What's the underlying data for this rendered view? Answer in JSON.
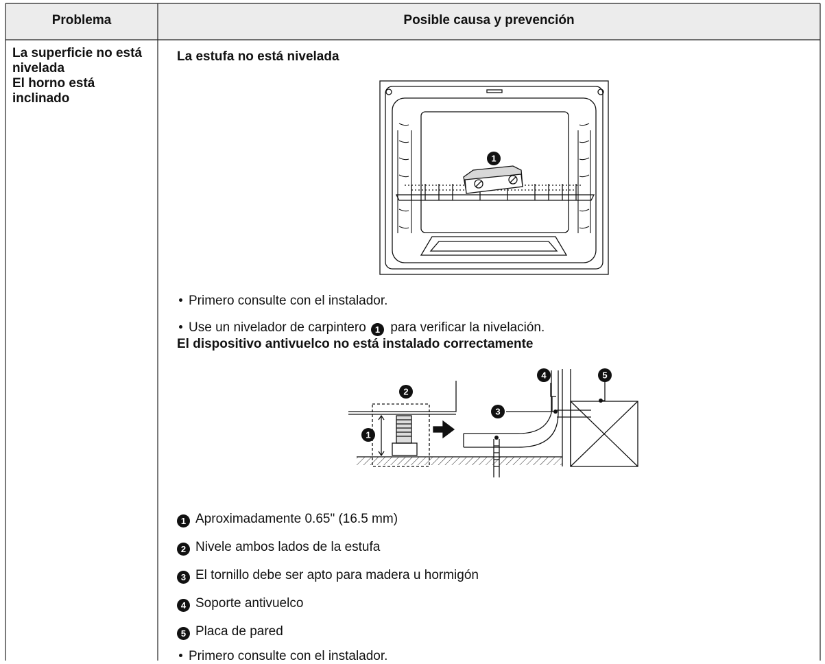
{
  "table": {
    "header": [
      "Problema",
      "Posible causa y prevención"
    ],
    "problem": [
      "La superficie no está nivelada",
      "El horno está inclinado"
    ],
    "cause_1": {
      "title": "La estufa no está nivelada",
      "figure_callouts": [
        "1"
      ],
      "bullets": [
        {
          "text": "Primero consulte con el instalador."
        },
        {
          "text_before": "Use un nivelador de carpintero",
          "marker": "1",
          "text_after": "para verificar la nivelación."
        }
      ]
    },
    "cause_2": {
      "title": "El dispositivo antivuelco no está instalado correctamente",
      "figure_callouts": [
        "1",
        "2",
        "3",
        "4",
        "5"
      ],
      "legend": [
        {
          "marker": "1",
          "text": "Aproximadamente 0.65\" (16.5 mm)"
        },
        {
          "marker": "2",
          "text": "Nivele ambos lados de la estufa"
        },
        {
          "marker": "3",
          "text": "El tornillo debe ser apto para madera u hormigón"
        },
        {
          "marker": "4",
          "text": "Soporte antivuelco"
        },
        {
          "marker": "5",
          "text": "Placa de pared"
        }
      ],
      "bullets": [
        {
          "text": "Primero consulte con el instalador."
        }
      ]
    }
  }
}
